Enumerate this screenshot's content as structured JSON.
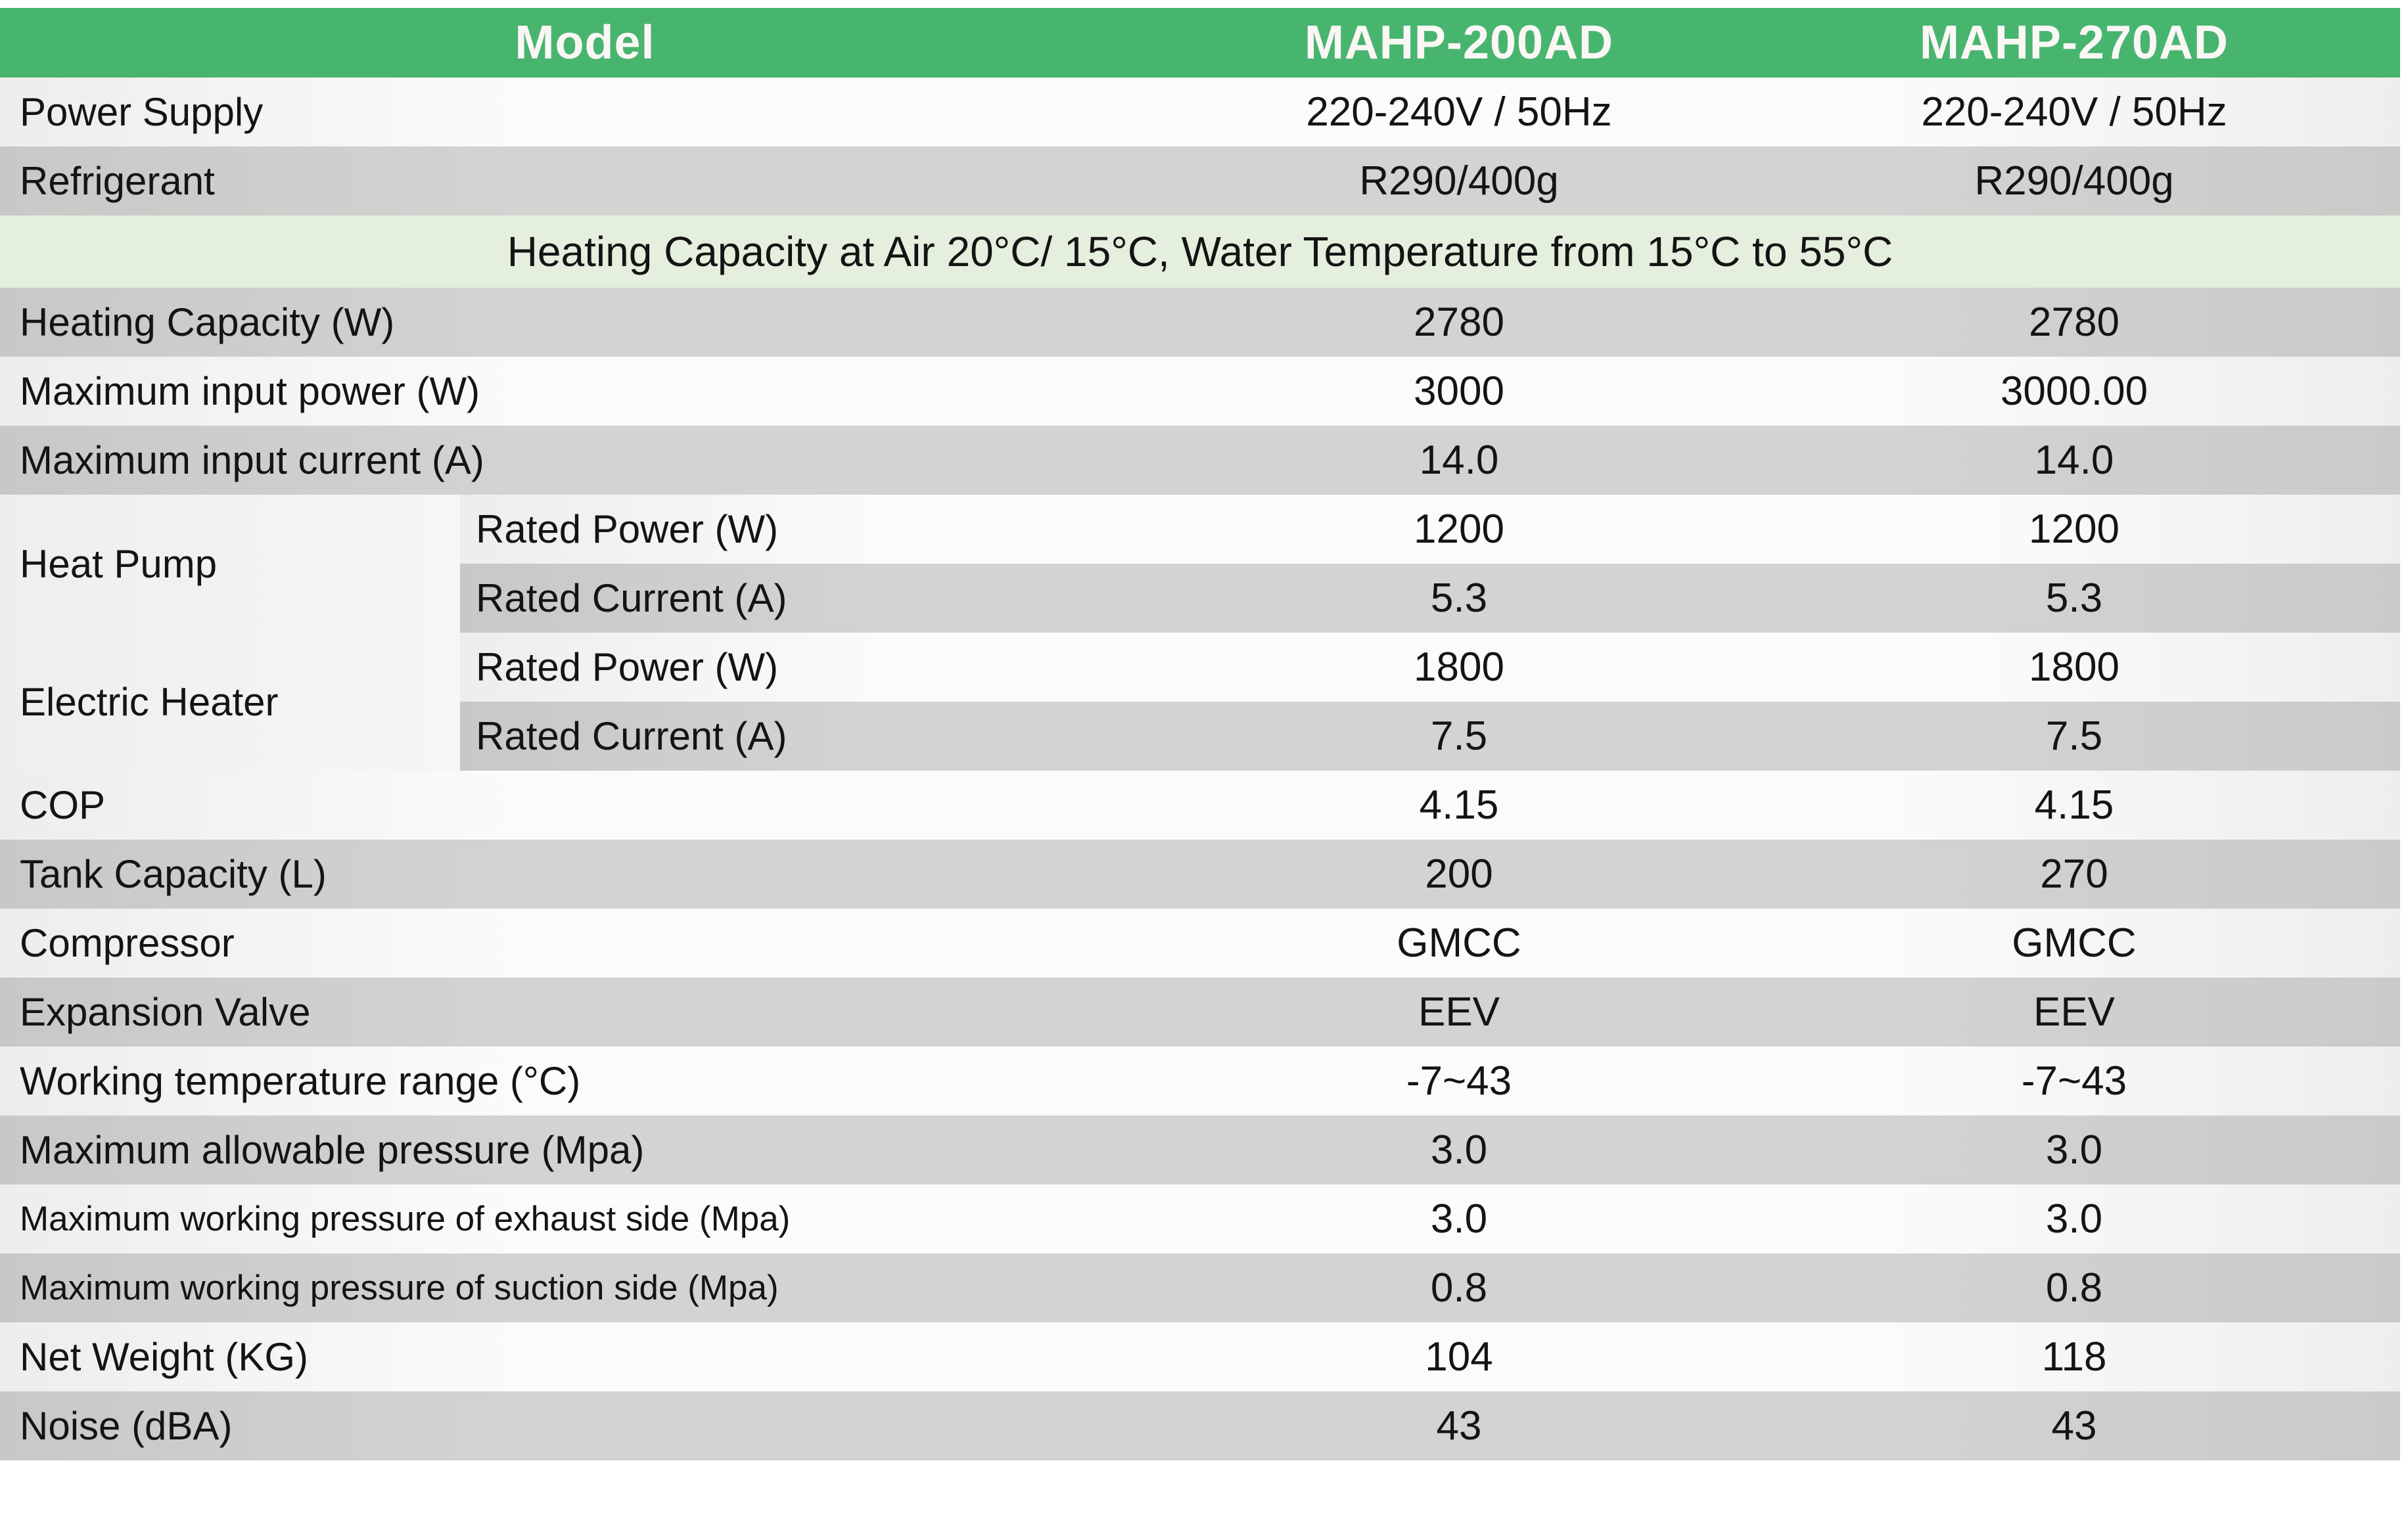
{
  "table": {
    "colors": {
      "header_green": "#48b56f",
      "banner_green": "#e4efde",
      "row_gray": "#d2d1d0",
      "row_white": "#fbfafa",
      "header_text": "#fbf7f5",
      "body_text": "#141414"
    },
    "header": {
      "model_label": "Model",
      "col1": "MAHP-200AD",
      "col2": "MAHP-270AD"
    },
    "banner_text": "Heating Capacity at Air 20°C/ 15°C, Water Temperature from 15°C to 55°C",
    "rows": [
      {
        "type": "simple",
        "label": "Power Supply",
        "v1": "220-240V / 50Hz",
        "v2": "220-240V / 50Hz",
        "shade": "light"
      },
      {
        "type": "simple",
        "label": "Refrigerant",
        "v1": "R290/400g",
        "v2": "R290/400g",
        "shade": "dark"
      },
      {
        "type": "banner"
      },
      {
        "type": "simple",
        "label": "Heating Capacity (W)",
        "v1": "2780",
        "v2": "2780",
        "shade": "dark"
      },
      {
        "type": "simple",
        "label": "Maximum input power (W)",
        "v1": "3000",
        "v2": "3000.00",
        "shade": "light"
      },
      {
        "type": "simple",
        "label": "Maximum input current (A)",
        "v1": "14.0",
        "v2": "14.0",
        "shade": "dark"
      },
      {
        "type": "group",
        "group_label": "Heat Pump",
        "subrows": [
          {
            "label": "Rated Power (W)",
            "v1": "1200",
            "v2": "1200",
            "shade": "light"
          },
          {
            "label": "Rated Current (A)",
            "v1": "5.3",
            "v2": "5.3",
            "shade": "dark"
          }
        ]
      },
      {
        "type": "group",
        "group_label": "Electric Heater",
        "subrows": [
          {
            "label": "Rated Power (W)",
            "v1": "1800",
            "v2": "1800",
            "shade": "light"
          },
          {
            "label": "Rated Current (A)",
            "v1": "7.5",
            "v2": "7.5",
            "shade": "dark"
          }
        ]
      },
      {
        "type": "simple",
        "label": "COP",
        "v1": "4.15",
        "v2": "4.15",
        "shade": "light"
      },
      {
        "type": "simple",
        "label": "Tank Capacity (L)",
        "v1": "200",
        "v2": "270",
        "shade": "dark"
      },
      {
        "type": "simple",
        "label": "Compressor",
        "v1": "GMCC",
        "v2": "GMCC",
        "shade": "light"
      },
      {
        "type": "simple",
        "label": "Expansion Valve",
        "v1": "EEV",
        "v2": "EEV",
        "shade": "dark"
      },
      {
        "type": "simple",
        "label": "Working temperature range (°C)",
        "v1": "-7~43",
        "v2": "-7~43",
        "shade": "light"
      },
      {
        "type": "simple",
        "label": "Maximum allowable pressure (Mpa)",
        "v1": "3.0",
        "v2": "3.0",
        "shade": "dark"
      },
      {
        "type": "simple",
        "label": "Maximum working pressure of exhaust side (Mpa)",
        "v1": "3.0",
        "v2": "3.0",
        "shade": "light",
        "small": true
      },
      {
        "type": "simple",
        "label": "Maximum working pressure of suction side (Mpa)",
        "v1": "0.8",
        "v2": "0.8",
        "shade": "dark",
        "small": true
      },
      {
        "type": "simple",
        "label": "Net Weight (KG)",
        "v1": "104",
        "v2": "118",
        "shade": "light"
      },
      {
        "type": "simple",
        "label": "Noise (dBA)",
        "v1": "43",
        "v2": "43",
        "shade": "dark"
      }
    ]
  }
}
